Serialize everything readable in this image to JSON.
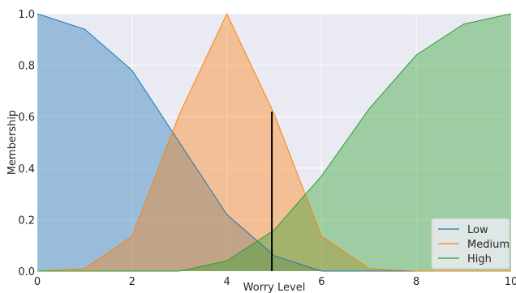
{
  "chart_data": {
    "type": "area",
    "xlabel": "Worry Level",
    "ylabel": "Membership",
    "xlim": [
      0,
      10
    ],
    "ylim": [
      0,
      1
    ],
    "x_ticks": [
      0,
      2,
      4,
      6,
      8,
      10
    ],
    "y_ticks": [
      0.0,
      0.2,
      0.4,
      0.6,
      0.8,
      1.0
    ],
    "x_tick_labels": [
      "0",
      "2",
      "4",
      "6",
      "8",
      "10"
    ],
    "y_tick_labels": [
      "0.0",
      "0.2",
      "0.4",
      "0.6",
      "0.8",
      "1.0"
    ],
    "x": [
      0,
      1,
      2,
      3,
      4,
      5,
      6,
      7,
      8,
      9,
      10
    ],
    "series": [
      {
        "name": "Low",
        "color": "#1f77b4",
        "values": [
          1.0,
          0.94,
          0.78,
          0.5,
          0.22,
          0.06,
          0.0,
          0.0,
          0.0,
          0.0,
          0.0
        ]
      },
      {
        "name": "Medium",
        "color": "#ff7f0e",
        "values": [
          0.0,
          0.01,
          0.135,
          0.61,
          1.0,
          0.61,
          0.135,
          0.01,
          0.0,
          0.0,
          0.0
        ]
      },
      {
        "name": "High",
        "color": "#2ca02c",
        "values": [
          0.0,
          0.0,
          0.0,
          0.0,
          0.04,
          0.16,
          0.37,
          0.63,
          0.84,
          0.96,
          1.0
        ]
      }
    ],
    "vertical_marker": {
      "x": 4.95,
      "y": 0.62,
      "color": "#000000"
    },
    "grid": true,
    "legend": "bottom-right",
    "background": "#eaeaf2"
  }
}
